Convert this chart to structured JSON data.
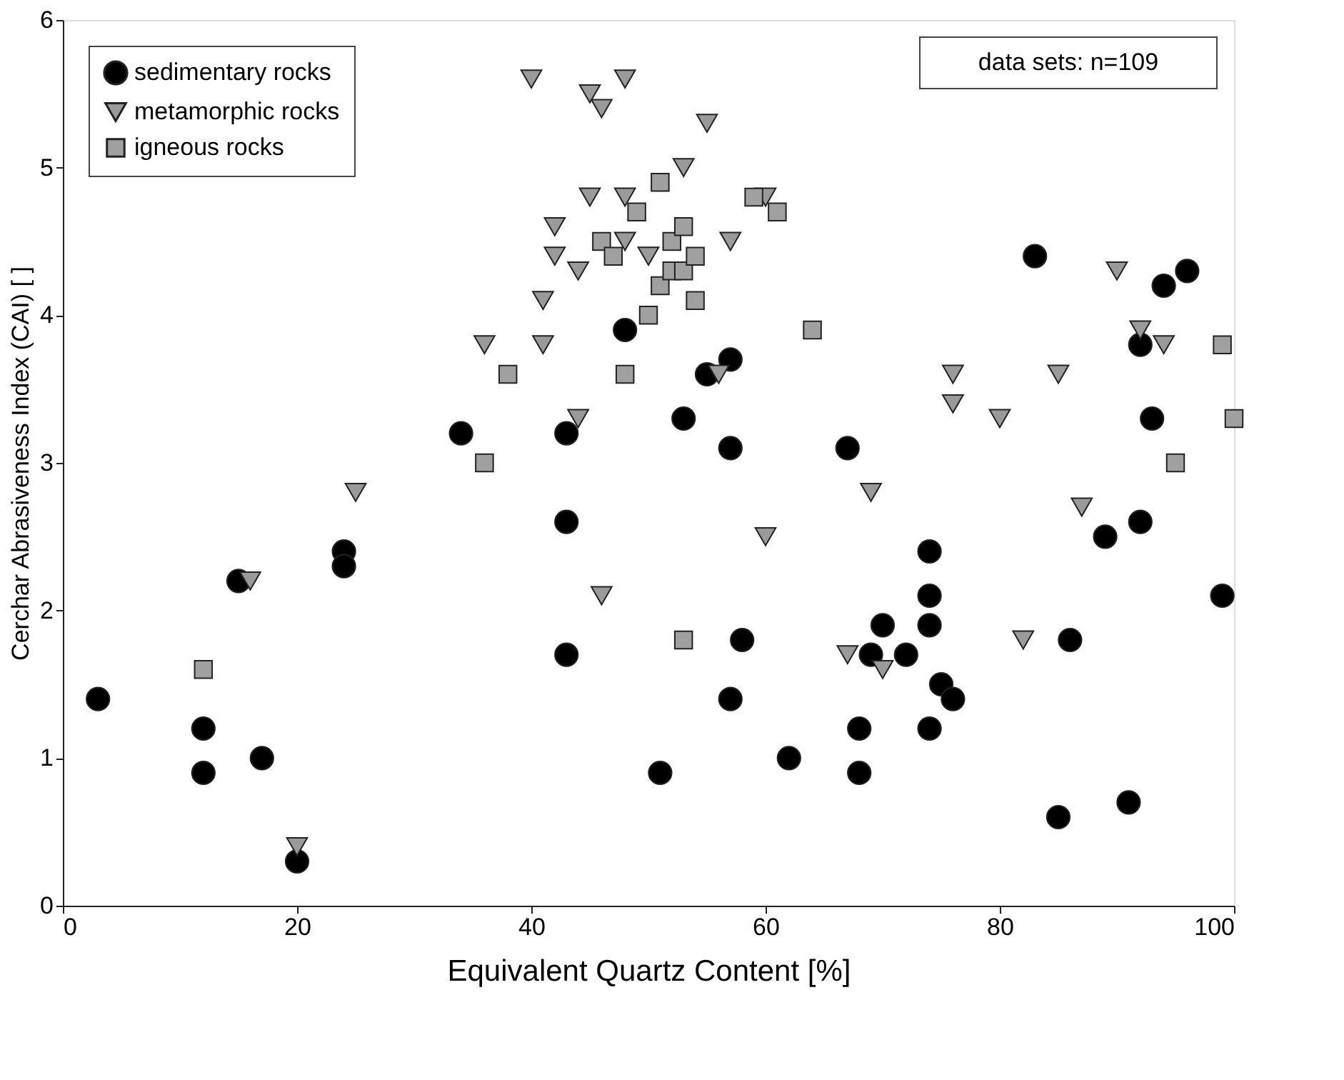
{
  "chart_data": {
    "type": "scatter",
    "xlabel": "Equivalent Quartz Content [%]",
    "ylabel": "Cerchar Abrasiveness Index (CAI) [ ]",
    "xlim": [
      0,
      100
    ],
    "ylim": [
      0,
      6
    ],
    "xticks": [
      0,
      20,
      40,
      60,
      80,
      100
    ],
    "yticks": [
      0,
      1,
      2,
      3,
      4,
      5,
      6
    ],
    "grid": false,
    "legend": "top left",
    "annotations": [
      "data sets: n=109"
    ],
    "series": [
      {
        "name": "sedimentary rocks",
        "color": "#000000",
        "marker": "circle",
        "x": [
          3,
          12,
          12,
          15,
          17,
          20,
          24,
          24,
          34,
          43,
          43,
          43,
          48,
          51,
          53,
          55,
          57,
          57,
          57,
          58,
          62,
          67,
          68,
          68,
          69,
          70,
          72,
          74,
          74,
          74,
          74,
          75,
          76,
          86,
          83,
          85,
          91,
          89,
          92,
          92,
          93,
          94,
          96,
          99
        ],
        "values": [
          1.4,
          1.2,
          0.9,
          2.2,
          1.0,
          0.3,
          2.4,
          2.3,
          3.2,
          3.2,
          2.6,
          1.7,
          3.9,
          0.9,
          3.3,
          3.6,
          3.7,
          3.1,
          1.4,
          1.8,
          1.0,
          3.1,
          0.9,
          1.2,
          1.7,
          1.9,
          1.7,
          2.4,
          2.1,
          1.9,
          1.2,
          1.5,
          1.4,
          1.8,
          4.4,
          0.6,
          0.7,
          2.5,
          2.6,
          3.8,
          3.3,
          4.2,
          4.3,
          2.1
        ]
      },
      {
        "name": "metamorphic rocks",
        "color": "#9a9a9a",
        "marker": "triangle",
        "x": [
          40,
          45,
          46,
          48,
          55,
          53,
          45,
          48,
          42,
          42,
          44,
          41,
          50,
          48,
          57,
          60,
          36,
          41,
          44,
          25,
          16,
          20,
          46,
          56,
          60,
          69,
          67,
          70,
          76,
          76,
          80,
          82,
          85,
          87,
          90,
          92,
          94
        ],
        "values": [
          5.6,
          5.5,
          5.4,
          5.6,
          5.3,
          5.0,
          4.8,
          4.8,
          4.6,
          4.4,
          4.3,
          4.1,
          4.4,
          4.5,
          4.5,
          4.8,
          3.8,
          3.8,
          3.3,
          2.8,
          2.2,
          0.4,
          2.1,
          3.6,
          2.5,
          2.8,
          1.7,
          1.6,
          3.6,
          3.4,
          3.3,
          1.8,
          3.6,
          2.7,
          4.3,
          3.9,
          3.8
        ]
      },
      {
        "name": "igneous rocks",
        "color": "#a0a0a0",
        "marker": "square",
        "x": [
          12,
          36,
          38,
          48,
          46,
          47,
          49,
          50,
          51,
          51,
          52,
          52,
          53,
          53,
          54,
          54,
          53,
          59,
          61,
          64,
          99,
          100,
          95
        ],
        "values": [
          1.6,
          3.0,
          3.6,
          3.6,
          4.5,
          4.4,
          4.7,
          4.0,
          4.9,
          4.2,
          4.5,
          4.3,
          4.6,
          4.3,
          4.4,
          4.1,
          1.8,
          4.8,
          4.7,
          3.9,
          3.8,
          3.3,
          3.0
        ]
      }
    ]
  }
}
